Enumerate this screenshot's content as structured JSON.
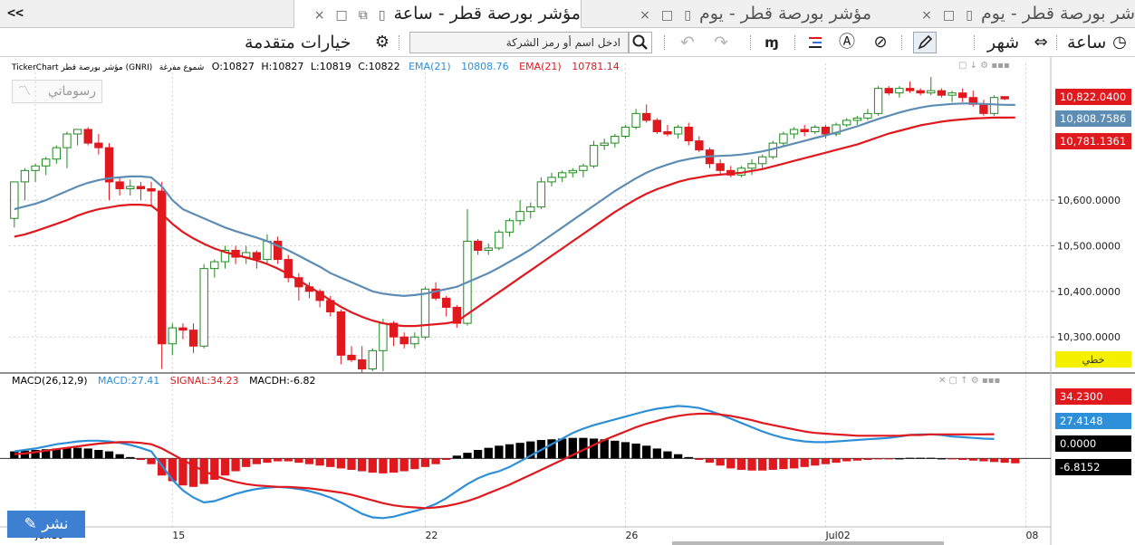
{
  "tabs": [
    {
      "label": "شر بورصة قطر - يوم",
      "state": "inactive"
    },
    {
      "label": "مؤشر بورصة قطر - يوم",
      "state": "inactive"
    },
    {
      "label": "مؤشر بورصة قطر - ساعة",
      "state": "active"
    }
  ],
  "toolbar": {
    "hour_label": "ساعة",
    "month_label": "شهر",
    "advanced_label": "خيارات متقدمة",
    "search_placeholder": "ادخل اسم أو رمز الشركة",
    "collapse_label": "<<"
  },
  "legend": {
    "name": "TickerChart مؤشر بورصة قطر (GNRI)",
    "style": "شموع مفرغة",
    "open": "O:10827",
    "high": "H:10827",
    "low": "L:10819",
    "close": "C:10822",
    "ema1_label": "EMA(21)",
    "ema1_value": "10808.76",
    "ema2_label": "EMA(21)",
    "ema2_value": "10781.14"
  },
  "macd_legend": {
    "title": "MACD(26,12,9)",
    "macd": "MACD:27.41",
    "signal": "SIGNAL:34.23",
    "macdh": "MACDH:-6.82"
  },
  "drawings_label": "رسوماتي",
  "publish_label": "نشر",
  "price_badges": [
    {
      "text": "10,822.0400",
      "value": 10822.04,
      "color": "#e0191f"
    },
    {
      "text": "10,808.7586",
      "value": 10808.7586,
      "color": "#5e8db4"
    },
    {
      "text": "10,781.1361",
      "value": 10781.1361,
      "color": "#e0191f"
    }
  ],
  "linear_badge": "خطي",
  "macd_badges": [
    {
      "text": "34.2300",
      "value": 34.23,
      "color": "#e0191f"
    },
    {
      "text": "27.4148",
      "value": 27.4148,
      "color": "#2d8fd8"
    },
    {
      "text": "0.0000",
      "value": 0,
      "color": "#000000"
    },
    {
      "text": "-6.8152",
      "value": -6.8152,
      "color": "#000000"
    }
  ],
  "chart_data": [
    {
      "type": "candlestick",
      "title": "",
      "y_ticks": [
        {
          "value": 10600,
          "label": "10,600.0000"
        },
        {
          "value": 10500,
          "label": "10,500.0000"
        },
        {
          "value": 10400,
          "label": "10,400.0000"
        },
        {
          "value": 10300,
          "label": "10,300.0000"
        }
      ],
      "ylim": [
        10225,
        10880
      ],
      "x_labels": [
        {
          "index": 2,
          "label": "Jun10"
        },
        {
          "index": 15,
          "label": "15"
        },
        {
          "index": 39,
          "label": "22"
        },
        {
          "index": 58,
          "label": "26"
        },
        {
          "index": 77,
          "label": "Jul02"
        },
        {
          "index": 96,
          "label": "08"
        }
      ],
      "candles": [
        [
          10560,
          10640,
          10540,
          10640
        ],
        [
          10640,
          10670,
          10600,
          10665
        ],
        [
          10665,
          10680,
          10640,
          10675
        ],
        [
          10675,
          10695,
          10655,
          10690
        ],
        [
          10690,
          10720,
          10680,
          10715
        ],
        [
          10715,
          10750,
          10670,
          10745
        ],
        [
          10745,
          10755,
          10720,
          10755
        ],
        [
          10755,
          10760,
          10720,
          10725
        ],
        [
          10725,
          10745,
          10700,
          10715
        ],
        [
          10715,
          10725,
          10600,
          10640
        ],
        [
          10640,
          10650,
          10610,
          10625
        ],
        [
          10625,
          10645,
          10610,
          10630
        ],
        [
          10630,
          10640,
          10600,
          10625
        ],
        [
          10625,
          10640,
          10590,
          10620
        ],
        [
          10620,
          10640,
          10230,
          10285
        ],
        [
          10285,
          10330,
          10260,
          10320
        ],
        [
          10320,
          10330,
          10295,
          10315
        ],
        [
          10315,
          10330,
          10265,
          10280
        ],
        [
          10280,
          10460,
          10275,
          10450
        ],
        [
          10450,
          10470,
          10430,
          10465
        ],
        [
          10465,
          10500,
          10450,
          10490
        ],
        [
          10490,
          10500,
          10460,
          10475
        ],
        [
          10475,
          10500,
          10460,
          10485
        ],
        [
          10485,
          10490,
          10450,
          10470
        ],
        [
          10470,
          10525,
          10460,
          10510
        ],
        [
          10510,
          10520,
          10460,
          10470
        ],
        [
          10470,
          10480,
          10420,
          10430
        ],
        [
          10430,
          10440,
          10380,
          10410
        ],
        [
          10410,
          10420,
          10385,
          10400
        ],
        [
          10400,
          10405,
          10365,
          10380
        ],
        [
          10380,
          10390,
          10345,
          10355
        ],
        [
          10355,
          10360,
          10240,
          10260
        ],
        [
          10260,
          10280,
          10245,
          10250
        ],
        [
          10250,
          10280,
          10220,
          10230
        ],
        [
          10230,
          10275,
          10225,
          10270
        ],
        [
          10270,
          10340,
          10225,
          10330
        ],
        [
          10330,
          10335,
          10280,
          10300
        ],
        [
          10300,
          10310,
          10275,
          10285
        ],
        [
          10285,
          10310,
          10275,
          10300
        ],
        [
          10300,
          10410,
          10295,
          10405
        ],
        [
          10405,
          10420,
          10380,
          10385
        ],
        [
          10385,
          10390,
          10345,
          10365
        ],
        [
          10365,
          10370,
          10320,
          10330
        ],
        [
          10330,
          10580,
          10325,
          10510
        ],
        [
          10510,
          10515,
          10480,
          10490
        ],
        [
          10490,
          10505,
          10480,
          10495
        ],
        [
          10495,
          10535,
          10490,
          10530
        ],
        [
          10530,
          10560,
          10520,
          10555
        ],
        [
          10555,
          10600,
          10545,
          10575
        ],
        [
          10575,
          10595,
          10560,
          10585
        ],
        [
          10585,
          10650,
          10580,
          10640
        ],
        [
          10640,
          10660,
          10630,
          10650
        ],
        [
          10650,
          10665,
          10640,
          10660
        ],
        [
          10660,
          10670,
          10650,
          10665
        ],
        [
          10665,
          10680,
          10650,
          10675
        ],
        [
          10675,
          10730,
          10670,
          10720
        ],
        [
          10720,
          10735,
          10710,
          10725
        ],
        [
          10725,
          10745,
          10715,
          10740
        ],
        [
          10740,
          10765,
          10735,
          10760
        ],
        [
          10760,
          10800,
          10755,
          10790
        ],
        [
          10790,
          10810,
          10770,
          10775
        ],
        [
          10775,
          10780,
          10745,
          10750
        ],
        [
          10750,
          10765,
          10740,
          10745
        ],
        [
          10745,
          10765,
          10735,
          10760
        ],
        [
          10760,
          10770,
          10720,
          10730
        ],
        [
          10730,
          10740,
          10705,
          10710
        ],
        [
          10710,
          10715,
          10670,
          10680
        ],
        [
          10680,
          10690,
          10655,
          10665
        ],
        [
          10665,
          10675,
          10650,
          10655
        ],
        [
          10655,
          10675,
          10650,
          10670
        ],
        [
          10670,
          10690,
          10655,
          10680
        ],
        [
          10680,
          10700,
          10670,
          10695
        ],
        [
          10695,
          10730,
          10690,
          10725
        ],
        [
          10725,
          10750,
          10720,
          10745
        ],
        [
          10745,
          10760,
          10735,
          10755
        ],
        [
          10755,
          10765,
          10740,
          10750
        ],
        [
          10750,
          10765,
          10745,
          10760
        ],
        [
          10760,
          10765,
          10735,
          10745
        ],
        [
          10745,
          10770,
          10740,
          10765
        ],
        [
          10765,
          10780,
          10760,
          10775
        ],
        [
          10775,
          10785,
          10765,
          10780
        ],
        [
          10780,
          10800,
          10775,
          10790
        ],
        [
          10790,
          10850,
          10785,
          10845
        ],
        [
          10845,
          10850,
          10830,
          10835
        ],
        [
          10835,
          10850,
          10825,
          10845
        ],
        [
          10845,
          10860,
          10835,
          10840
        ],
        [
          10840,
          10845,
          10830,
          10835
        ],
        [
          10835,
          10870,
          10830,
          10840
        ],
        [
          10840,
          10845,
          10825,
          10830
        ],
        [
          10830,
          10840,
          10815,
          10835
        ],
        [
          10835,
          10845,
          10815,
          10825
        ],
        [
          10825,
          10840,
          10805,
          10810
        ],
        [
          10810,
          10820,
          10785,
          10790
        ],
        [
          10790,
          10830,
          10785,
          10825
        ],
        [
          10827,
          10827,
          10819,
          10822
        ]
      ],
      "series": [
        {
          "name": "EMA(21)",
          "color": "#5e8db4",
          "values": [
            10580,
            10586,
            10592,
            10600,
            10610,
            10620,
            10630,
            10638,
            10644,
            10648,
            10650,
            10652,
            10652,
            10650,
            10630,
            10600,
            10580,
            10570,
            10560,
            10550,
            10540,
            10532,
            10525,
            10518,
            10510,
            10500,
            10490,
            10478,
            10466,
            10454,
            10440,
            10430,
            10420,
            10410,
            10400,
            10395,
            10392,
            10390,
            10392,
            10395,
            10400,
            10405,
            10410,
            10420,
            10430,
            10440,
            10452,
            10465,
            10478,
            10492,
            10508,
            10524,
            10540,
            10556,
            10572,
            10588,
            10604,
            10620,
            10634,
            10648,
            10660,
            10670,
            10678,
            10685,
            10690,
            10694,
            10696,
            10697,
            10698,
            10700,
            10703,
            10707,
            10712,
            10718,
            10724,
            10730,
            10736,
            10742,
            10748,
            10755,
            10762,
            10770,
            10778,
            10785,
            10792,
            10798,
            10803,
            10807,
            10809,
            10811,
            10812,
            10812,
            10811,
            10810,
            10809,
            10808.76
          ]
        },
        {
          "name": "EMA(21)",
          "color": "#e0191f",
          "values": [
            10520,
            10525,
            10532,
            10540,
            10548,
            10556,
            10566,
            10574,
            10580,
            10584,
            10588,
            10590,
            10590,
            10588,
            10570,
            10548,
            10530,
            10516,
            10504,
            10494,
            10486,
            10480,
            10474,
            10468,
            10460,
            10450,
            10438,
            10424,
            10410,
            10396,
            10380,
            10366,
            10354,
            10344,
            10336,
            10330,
            10326,
            10324,
            10324,
            10326,
            10328,
            10330,
            10334,
            10350,
            10366,
            10382,
            10398,
            10414,
            10430,
            10446,
            10462,
            10478,
            10494,
            10510,
            10526,
            10542,
            10558,
            10574,
            10588,
            10602,
            10614,
            10624,
            10632,
            10640,
            10646,
            10650,
            10654,
            10656,
            10658,
            10660,
            10664,
            10668,
            10674,
            10680,
            10686,
            10692,
            10698,
            10704,
            10710,
            10716,
            10722,
            10730,
            10738,
            10746,
            10752,
            10758,
            10764,
            10768,
            10772,
            10775,
            10777,
            10779,
            10780,
            10781,
            10781,
            10781.14
          ]
        }
      ]
    },
    {
      "type": "macd",
      "title": "MACD(26,12,9)",
      "ylim": [
        -90,
        100
      ],
      "series": [
        {
          "name": "MACD",
          "color": "#2d8fd8",
          "values": [
            10,
            12,
            14,
            17,
            20,
            22,
            24,
            25,
            25,
            24,
            22,
            19,
            15,
            10,
            -10,
            -30,
            -45,
            -55,
            -62,
            -60,
            -55,
            -50,
            -46,
            -43,
            -41,
            -40,
            -41,
            -43,
            -46,
            -50,
            -55,
            -62,
            -70,
            -78,
            -83,
            -84,
            -82,
            -78,
            -74,
            -70,
            -64,
            -56,
            -46,
            -36,
            -28,
            -22,
            -18,
            -12,
            -4,
            4,
            12,
            20,
            28,
            36,
            42,
            47,
            51,
            55,
            59,
            63,
            67,
            70,
            72,
            74,
            73,
            71,
            67,
            62,
            56,
            50,
            44,
            38,
            33,
            29,
            26,
            24,
            23,
            23,
            24,
            25,
            26,
            27,
            28,
            29,
            31,
            33,
            34,
            34,
            33,
            31,
            30,
            29,
            28,
            27.41
          ]
        },
        {
          "name": "SIGNAL",
          "color": "#e0191f",
          "values": [
            6,
            7,
            9,
            11,
            13,
            15,
            17,
            19,
            21,
            22,
            23,
            23,
            22,
            20,
            14,
            6,
            -2,
            -10,
            -18,
            -24,
            -29,
            -33,
            -36,
            -38,
            -39,
            -40,
            -40,
            -41,
            -42,
            -44,
            -46,
            -48,
            -51,
            -55,
            -59,
            -63,
            -66,
            -68,
            -69,
            -70,
            -69,
            -67,
            -64,
            -60,
            -55,
            -49,
            -43,
            -37,
            -30,
            -23,
            -16,
            -9,
            -2,
            5,
            12,
            19,
            26,
            32,
            38,
            44,
            49,
            53,
            57,
            60,
            62,
            63,
            63,
            62,
            60,
            57,
            54,
            50,
            47,
            44,
            41,
            38,
            36,
            35,
            34,
            33,
            32,
            32,
            32,
            32,
            32,
            33,
            33,
            34,
            34,
            34,
            34,
            34,
            34,
            34.23
          ]
        },
        {
          "name": "MACDH",
          "color": "#000000",
          "negative_color": "#e0191f",
          "values": [
            10,
            11,
            12,
            13,
            14,
            15,
            15,
            14,
            12,
            10,
            6,
            2,
            -2,
            -8,
            -24,
            -32,
            -38,
            -40,
            -36,
            -30,
            -24,
            -18,
            -12,
            -8,
            -6,
            -4,
            -4,
            -6,
            -8,
            -10,
            -12,
            -14,
            -16,
            -18,
            -20,
            -21,
            -20,
            -18,
            -15,
            -12,
            -8,
            -2,
            4,
            8,
            12,
            15,
            18,
            20,
            22,
            24,
            26,
            27,
            28,
            29,
            29,
            28,
            27,
            25,
            23,
            21,
            18,
            14,
            10,
            6,
            2,
            -2,
            -6,
            -10,
            -14,
            -16,
            -17,
            -17,
            -16,
            -15,
            -14,
            -12,
            -10,
            -8,
            -6,
            -4,
            -3,
            -2,
            -1,
            -1,
            0,
            1,
            1,
            1,
            0,
            -1,
            -2,
            -3,
            -4,
            -5,
            -6,
            -6.82
          ]
        }
      ]
    }
  ]
}
